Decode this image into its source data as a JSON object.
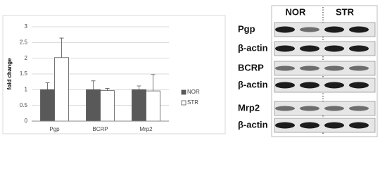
{
  "chart_data": {
    "type": "bar",
    "y_label": "fold change",
    "categories": [
      "Pgp",
      "BCRP",
      "Mrp2"
    ],
    "series": [
      {
        "name": "NOR",
        "color": "#595959",
        "values": [
          1,
          1,
          1
        ],
        "errors": [
          0.22,
          0.28,
          0.12
        ]
      },
      {
        "name": "STR",
        "color": "#ffffff",
        "values": [
          2.02,
          0.97,
          0.96
        ],
        "errors": [
          0.62,
          0.07,
          0.52
        ]
      }
    ],
    "ylim": [
      0,
      3
    ],
    "yticks": [
      0,
      0.5,
      1,
      1.5,
      2,
      2.5,
      3
    ],
    "grid": true,
    "legend": "right"
  },
  "blot": {
    "columns": [
      "NOR",
      "STR"
    ],
    "rows": [
      "Pgp",
      "β-actin",
      "BCRP",
      "β-actin",
      "Mrp2",
      "β-actin"
    ]
  }
}
